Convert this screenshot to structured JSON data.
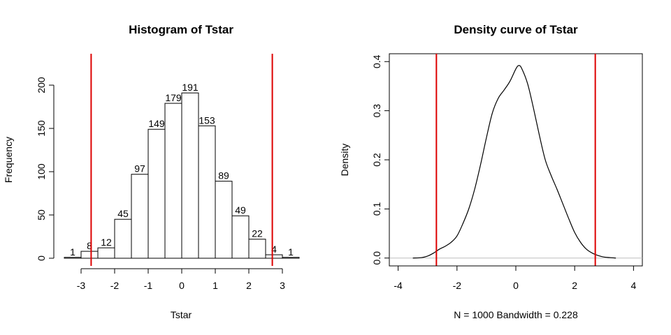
{
  "chart_data": [
    {
      "type": "bar",
      "title": "Histogram of Tstar",
      "xlabel": "Tstar",
      "ylabel": "Frequency",
      "bins": [
        {
          "from": -3.5,
          "to": -3.0,
          "count": 1
        },
        {
          "from": -3.0,
          "to": -2.5,
          "count": 8
        },
        {
          "from": -2.5,
          "to": -2.0,
          "count": 12
        },
        {
          "from": -2.0,
          "to": -1.5,
          "count": 45
        },
        {
          "from": -1.5,
          "to": -1.0,
          "count": 97
        },
        {
          "from": -1.0,
          "to": -0.5,
          "count": 149
        },
        {
          "from": -0.5,
          "to": 0.0,
          "count": 179
        },
        {
          "from": 0.0,
          "to": 0.5,
          "count": 191
        },
        {
          "from": 0.5,
          "to": 1.0,
          "count": 153
        },
        {
          "from": 1.0,
          "to": 1.5,
          "count": 89
        },
        {
          "from": 1.5,
          "to": 2.0,
          "count": 49
        },
        {
          "from": 2.0,
          "to": 2.5,
          "count": 22
        },
        {
          "from": 2.5,
          "to": 3.0,
          "count": 4
        },
        {
          "from": 3.0,
          "to": 3.5,
          "count": 1
        }
      ],
      "xticks": [
        -3,
        -2,
        -1,
        0,
        1,
        2,
        3
      ],
      "yticks": [
        0,
        50,
        100,
        150,
        200
      ],
      "xlim": [
        -3.5,
        3.5
      ],
      "ylim": [
        0,
        200
      ],
      "vlines": [
        -2.7,
        2.7
      ],
      "vline_color": "#dd0000"
    },
    {
      "type": "line",
      "title": "Density curve of Tstar",
      "xlabel": "N = 1000   Bandwidth = 0.228",
      "ylabel": "Density",
      "x": [
        -3.5,
        -3.2,
        -3.0,
        -2.8,
        -2.6,
        -2.4,
        -2.2,
        -2.0,
        -1.8,
        -1.6,
        -1.4,
        -1.2,
        -1.0,
        -0.8,
        -0.6,
        -0.4,
        -0.2,
        0.0,
        0.1,
        0.2,
        0.4,
        0.6,
        0.8,
        1.0,
        1.2,
        1.4,
        1.6,
        1.8,
        2.0,
        2.2,
        2.4,
        2.6,
        2.8,
        3.0,
        3.2,
        3.4
      ],
      "y": [
        0.0,
        0.001,
        0.004,
        0.01,
        0.018,
        0.024,
        0.032,
        0.045,
        0.07,
        0.1,
        0.14,
        0.19,
        0.245,
        0.295,
        0.325,
        0.342,
        0.36,
        0.385,
        0.392,
        0.386,
        0.355,
        0.305,
        0.25,
        0.2,
        0.168,
        0.14,
        0.11,
        0.08,
        0.052,
        0.032,
        0.018,
        0.01,
        0.005,
        0.002,
        0.001,
        0.0
      ],
      "xticks": [
        -4,
        -2,
        0,
        2,
        4
      ],
      "yticks": [
        "0.0",
        "0.1",
        "0.2",
        "0.3",
        "0.4"
      ],
      "xlim": [
        -4.3,
        4.3
      ],
      "ylim": [
        -0.016,
        0.416
      ],
      "vlines": [
        -2.7,
        2.7
      ],
      "vline_color": "#dd0000",
      "baseline_color": "#bebebe"
    }
  ]
}
